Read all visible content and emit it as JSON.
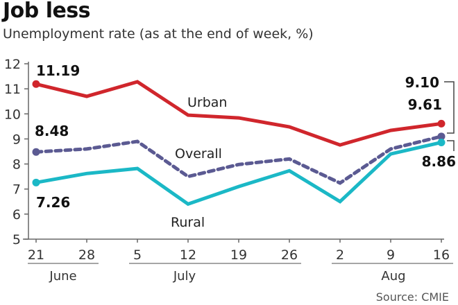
{
  "chart_data": {
    "type": "line",
    "title": "Job less",
    "subtitle": "Unemployment rate (as at the end of week, %)",
    "xlabel": "",
    "ylabel": "",
    "ylim": [
      5,
      12
    ],
    "yticks": [
      5,
      6,
      7,
      8,
      9,
      10,
      11,
      12
    ],
    "categories": [
      "21",
      "28",
      "5",
      "12",
      "19",
      "26",
      "2",
      "9",
      "16"
    ],
    "month_groups": [
      {
        "label": "June",
        "from": 0,
        "to": 1
      },
      {
        "label": "July",
        "from": 2,
        "to": 5
      },
      {
        "label": "Aug",
        "from": 6,
        "to": 8
      }
    ],
    "series": [
      {
        "name": "Urban",
        "color": "#d0262c",
        "style": "solid",
        "values": [
          11.19,
          10.7,
          11.28,
          9.95,
          9.84,
          9.48,
          8.76,
          9.34,
          9.61
        ]
      },
      {
        "name": "Overall",
        "color": "#5b5a92",
        "style": "dotted",
        "values": [
          8.48,
          8.6,
          8.9,
          7.5,
          7.98,
          8.2,
          7.24,
          8.6,
          9.1
        ]
      },
      {
        "name": "Rural",
        "color": "#1bb8c6",
        "style": "solid",
        "values": [
          7.26,
          7.62,
          7.82,
          6.4,
          7.1,
          7.73,
          6.5,
          8.4,
          8.86
        ]
      }
    ],
    "annotations": {
      "urban_start": "11.19",
      "overall_start": "8.48",
      "rural_start": "7.26",
      "urban_end": "9.61",
      "overall_end": "9.10",
      "rural_end": "8.86"
    },
    "source": "Source: CMIE",
    "grid": false
  }
}
